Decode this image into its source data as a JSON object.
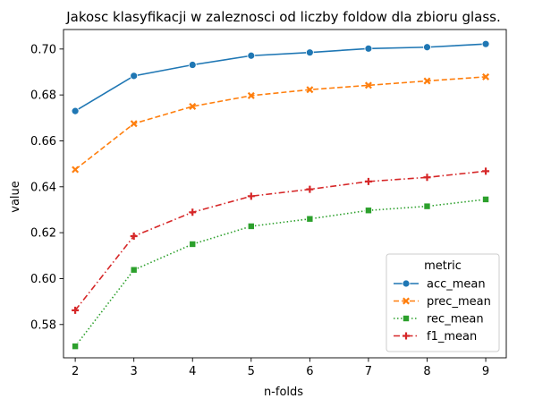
{
  "chart_data": {
    "type": "line",
    "title": "Jakosc klasyfikacji w zaleznosci od liczby foldow dla zbioru glass.",
    "xlabel": "n-folds",
    "ylabel": "value",
    "x": [
      2,
      3,
      4,
      5,
      6,
      7,
      8,
      9
    ],
    "xlim": [
      1.8,
      9.35
    ],
    "ylim": [
      0.5655,
      0.7085
    ],
    "xticks": [
      2,
      3,
      4,
      5,
      6,
      7,
      8,
      9
    ],
    "yticks": [
      0.58,
      0.6,
      0.62,
      0.64,
      0.66,
      0.68,
      0.7
    ],
    "ytick_labels": [
      "0.58",
      "0.60",
      "0.62",
      "0.64",
      "0.66",
      "0.68",
      "0.70"
    ],
    "grid": false,
    "legend": {
      "title": "metric",
      "position": "lower-right"
    },
    "series": [
      {
        "name": "acc_mean",
        "color": "#1f77b4",
        "marker": "circle",
        "dash": "solid",
        "values": [
          0.673,
          0.6883,
          0.6931,
          0.6971,
          0.6985,
          0.7002,
          0.7008,
          0.7022
        ]
      },
      {
        "name": "prec_mean",
        "color": "#ff7f0e",
        "marker": "x",
        "dash": "dashed",
        "values": [
          0.6475,
          0.6675,
          0.675,
          0.6797,
          0.6823,
          0.6842,
          0.6861,
          0.6879
        ]
      },
      {
        "name": "rec_mean",
        "color": "#2ca02c",
        "marker": "square",
        "dash": "dotted",
        "values": [
          0.5705,
          0.6038,
          0.615,
          0.6228,
          0.626,
          0.6297,
          0.6315,
          0.6345
        ]
      },
      {
        "name": "f1_mean",
        "color": "#d62728",
        "marker": "plus",
        "dash": "dashdot",
        "values": [
          0.5862,
          0.6185,
          0.6289,
          0.6359,
          0.6389,
          0.6423,
          0.6441,
          0.6468
        ]
      }
    ]
  }
}
